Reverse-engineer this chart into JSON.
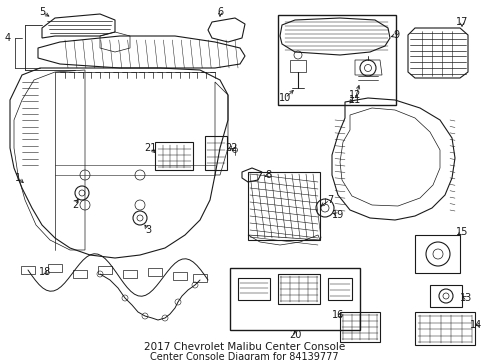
{
  "title_line1": "2017 Chevrolet Malibu Center Console",
  "title_line2": "Center Console Diagram for 84139777",
  "bg": "#ffffff",
  "lc": "#1a1a1a",
  "fig_w": 4.89,
  "fig_h": 3.6,
  "dpi": 100,
  "label_fs": 7.0,
  "coord_system": "pixels_489x360"
}
